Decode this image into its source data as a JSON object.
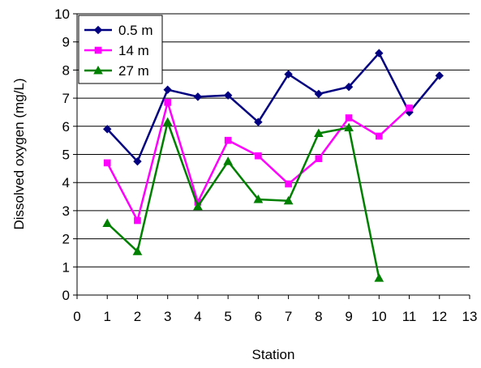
{
  "chart_data": {
    "type": "line",
    "title": "",
    "xlabel": "Station",
    "ylabel": "Dissolved oxygen (mg/L)",
    "xlim": [
      0,
      13
    ],
    "ylim": [
      0,
      10
    ],
    "xticks": [
      "0",
      "1",
      "2",
      "3",
      "4",
      "5",
      "6",
      "7",
      "8",
      "9",
      "10",
      "11",
      "12",
      "13"
    ],
    "yticks": [
      "0",
      "1",
      "2",
      "3",
      "4",
      "5",
      "6",
      "7",
      "8",
      "9",
      "10"
    ],
    "grid": "horizontal",
    "legend_position": "top-left",
    "series": [
      {
        "name": "0.5 m",
        "color": "#000080",
        "marker": "diamond",
        "x": [
          1,
          2,
          3,
          4,
          5,
          6,
          7,
          8,
          9,
          10,
          11,
          12
        ],
        "y": [
          5.9,
          4.75,
          7.3,
          7.05,
          7.1,
          6.15,
          7.85,
          7.15,
          7.4,
          8.6,
          6.5,
          7.8
        ]
      },
      {
        "name": "14 m",
        "color": "#ff00ff",
        "marker": "square",
        "x": [
          1,
          2,
          3,
          4,
          5,
          6,
          7,
          8,
          9,
          10,
          11
        ],
        "y": [
          4.7,
          2.65,
          6.85,
          3.3,
          5.5,
          4.95,
          3.95,
          4.85,
          6.3,
          5.65,
          6.65
        ]
      },
      {
        "name": "27 m",
        "color": "#008000",
        "marker": "triangle",
        "x": [
          1,
          2,
          3,
          4,
          5,
          6,
          7,
          8,
          9,
          10
        ],
        "y": [
          2.55,
          1.55,
          6.15,
          3.15,
          4.75,
          3.4,
          3.35,
          5.75,
          5.95,
          0.6
        ]
      }
    ]
  }
}
